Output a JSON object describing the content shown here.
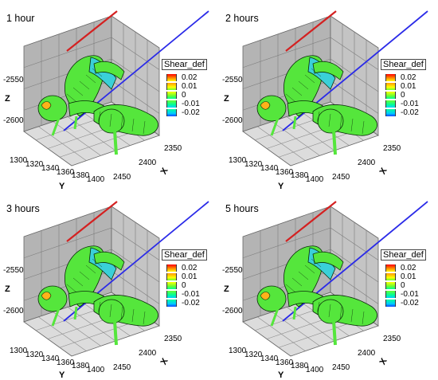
{
  "panels": [
    {
      "title": "1 hour"
    },
    {
      "title": "2 hours"
    },
    {
      "title": "3 hours"
    },
    {
      "title": "5 hours"
    }
  ],
  "axes": {
    "z_label": "Z",
    "y_label": "Y",
    "x_label": "X",
    "z_ticks": [
      "-2550",
      "-2600"
    ],
    "y_ticks": [
      "1300",
      "1320",
      "1340",
      "1360",
      "1380",
      "1400"
    ],
    "x_ticks": [
      "2350",
      "2400",
      "2450"
    ]
  },
  "legend": {
    "title": "Shear_def",
    "levels": [
      "0.02",
      "0.01",
      "0",
      "-0.01",
      "-0.02"
    ],
    "colors": [
      "#ff0000",
      "#ff9900",
      "#ffff00",
      "#66ff33",
      "#00ff99",
      "#00ccff",
      "#0044ff"
    ]
  },
  "colors": {
    "red_line": "#d42020",
    "blue_line": "#2a2ae8",
    "box_back": "#b4b4b4",
    "box_side": "#c4c4c4",
    "box_floor": "#dcdcdc",
    "body_green": "#55e63c",
    "body_cyan": "#3ad0d8"
  }
}
